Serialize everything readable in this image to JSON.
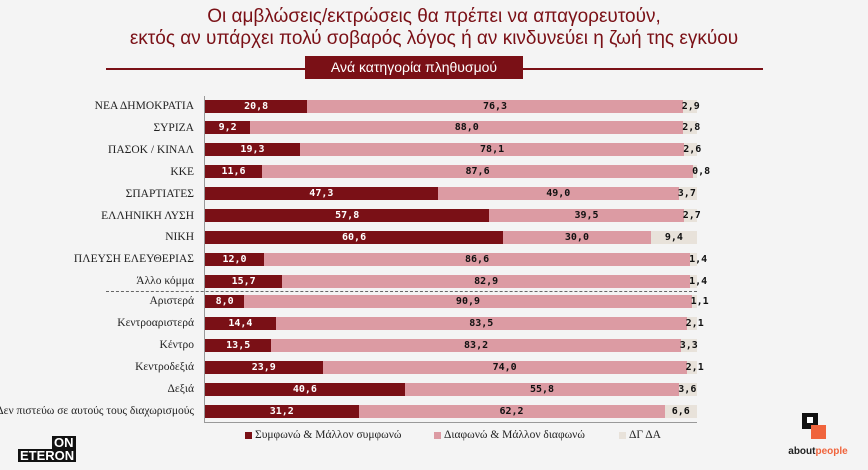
{
  "chart_data": {
    "type": "bar",
    "orientation": "horizontal",
    "stacked": true,
    "title": "Οι αμβλώσεις/εκτρώσεις θα πρέπει να απαγορευτούν,",
    "title_line2": "εκτός αν υπάρχει πολύ σοβαρός λόγος ή αν κινδυνεύει η ζωή της εγκύου",
    "subtitle": "Ανά κατηγορία πληθυσμού",
    "xlim": [
      0,
      100
    ],
    "grid": false,
    "legend_position": "bottom",
    "categories": [
      "ΝΕΑ ΔΗΜΟΚΡΑΤΙΑ",
      "ΣΥΡΙΖΑ",
      "ΠΑΣΟΚ / ΚΙΝΑΛ",
      "ΚΚΕ",
      "ΣΠΑΡΤΙΑΤΕΣ",
      "ΕΛΛΗΝΙΚΗ ΛΥΣΗ",
      "ΝΙΚΗ",
      "ΠΛΕΥΣΗ ΕΛΕΥΘΕΡΙΑΣ",
      "Άλλο κόμμα",
      "Αριστερά",
      "Κεντροαριστερά",
      "Κέντρο",
      "Κεντροδεξιά",
      "Δεξιά",
      "Δεν πιστεύω σε αυτούς τους διαχωρισμούς"
    ],
    "series": [
      {
        "name": "Συμφωνώ & Μάλλον συμφωνώ",
        "color": "#7a1016",
        "values": [
          20.8,
          9.2,
          19.3,
          11.6,
          47.3,
          57.8,
          60.6,
          12.0,
          15.7,
          8.0,
          14.4,
          13.5,
          23.9,
          40.6,
          31.2
        ]
      },
      {
        "name": "Διαφωνώ & Μάλλον διαφωνώ",
        "color": "#dc9ba3",
        "values": [
          76.3,
          88.0,
          78.1,
          87.6,
          49.0,
          39.5,
          30.0,
          86.6,
          82.9,
          90.9,
          83.5,
          83.2,
          74.0,
          55.8,
          62.2
        ]
      },
      {
        "name": "ΔΓ ΔΑ",
        "color": "#e8e2da",
        "values": [
          2.9,
          2.8,
          2.6,
          0.8,
          3.7,
          2.7,
          9.4,
          1.4,
          1.4,
          1.1,
          2.1,
          3.3,
          2.1,
          3.6,
          6.6
        ]
      }
    ]
  },
  "logos": {
    "left": "ON ETERON",
    "right": "aboutpeople"
  }
}
